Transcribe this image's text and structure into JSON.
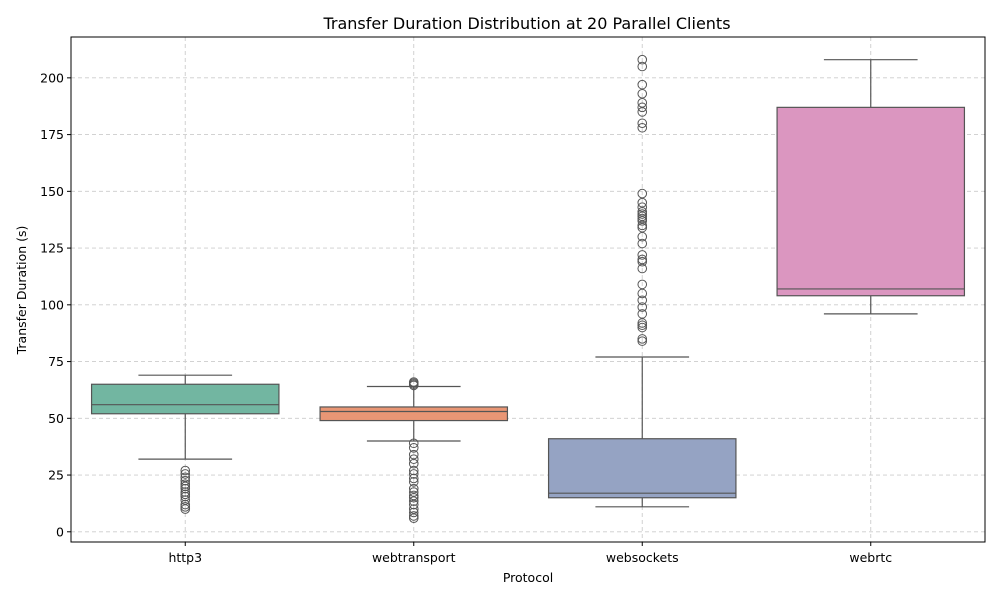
{
  "chart_data": {
    "type": "box",
    "title": "Transfer Duration Distribution at 20 Parallel Clients",
    "xlabel": "Protocol",
    "ylabel": "Transfer Duration (s)",
    "ylim": [
      -4.5,
      218
    ],
    "yticks": [
      0,
      25,
      50,
      75,
      100,
      125,
      150,
      175,
      200
    ],
    "grid": true,
    "categories": [
      "http3",
      "webtransport",
      "websockets",
      "webrtc"
    ],
    "series": [
      {
        "category": "http3",
        "color": "#72b6a1",
        "whisker_low": 32,
        "q1": 52,
        "median": 56,
        "q3": 65,
        "whisker_high": 69,
        "outliers": [
          27,
          25.5,
          24,
          22.5,
          21,
          20,
          19,
          17.5,
          16.5,
          15.5,
          14,
          12,
          11,
          10
        ]
      },
      {
        "category": "webtransport",
        "color": "#e99675",
        "whisker_low": 40,
        "q1": 49,
        "median": 53,
        "q3": 55,
        "whisker_high": 64,
        "outliers": [
          66,
          65.5,
          65,
          64.5,
          39,
          37,
          34,
          32,
          30,
          27,
          25.5,
          23.5,
          22,
          19,
          17.5,
          16,
          15,
          13.5,
          12,
          10,
          8.5,
          7,
          6
        ]
      },
      {
        "category": "websockets",
        "color": "#95a3c3",
        "whisker_low": 11,
        "q1": 15,
        "median": 17,
        "q3": 41,
        "whisker_high": 77,
        "outliers": [
          208,
          205,
          197,
          193,
          189,
          187,
          185,
          180,
          178,
          149,
          145,
          143,
          141,
          140,
          139,
          138,
          137,
          135,
          134,
          130,
          127,
          122,
          120,
          119,
          116,
          109,
          105,
          102,
          99,
          96,
          92,
          91,
          90,
          85,
          84
        ]
      },
      {
        "category": "webrtc",
        "color": "#db96c0",
        "whisker_low": 96,
        "q1": 104,
        "median": 107,
        "q3": 187,
        "whisker_high": 208,
        "outliers": []
      }
    ]
  }
}
